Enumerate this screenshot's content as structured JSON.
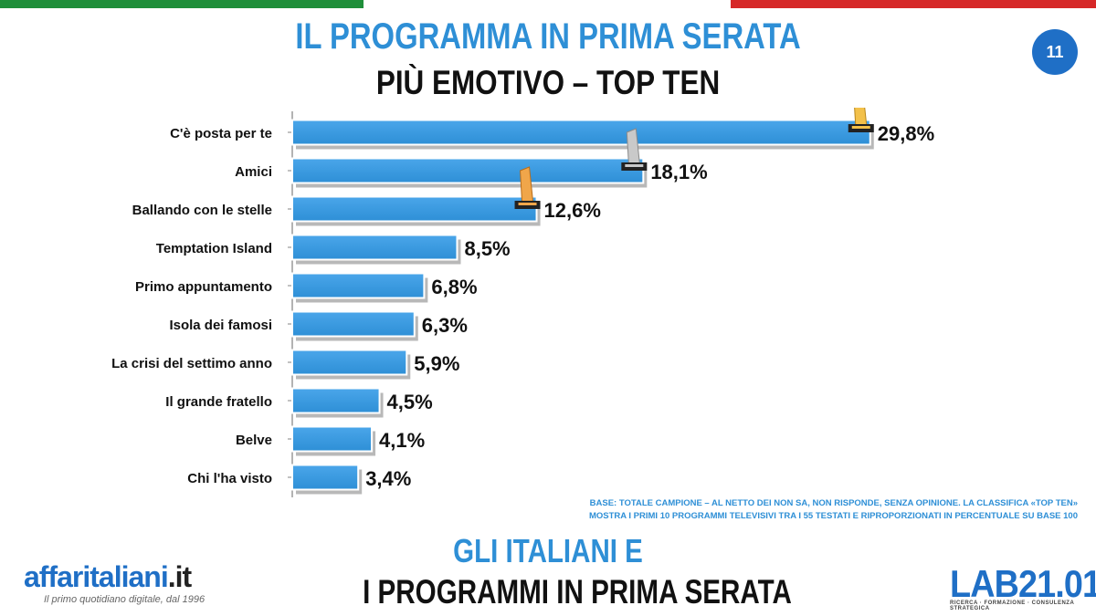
{
  "header": {
    "title": "IL PROGRAMMA IN PRIMA SERATA",
    "subtitle": "PIÙ EMOTIVO – TOP TEN",
    "page_number": "11"
  },
  "chart_data": {
    "type": "bar",
    "orientation": "horizontal",
    "categories": [
      "C'è posta per te",
      "Amici",
      "Ballando con le stelle",
      "Temptation Island",
      "Primo appuntamento",
      "Isola dei famosi",
      "La crisi del settimo anno",
      "Il grande fratello",
      "Belve",
      "Chi l'ha visto"
    ],
    "values": [
      29.8,
      18.1,
      12.6,
      8.5,
      6.8,
      6.3,
      5.9,
      4.5,
      4.1,
      3.4
    ],
    "value_labels": [
      "29,8%",
      "18,1%",
      "12,6%",
      "8,5%",
      "6,8%",
      "6,3%",
      "5,9%",
      "4,5%",
      "4,1%",
      "3,4%"
    ],
    "awards": [
      "gold",
      "silver",
      "bronze"
    ],
    "xlim": [
      0,
      30
    ],
    "bar_color": "#2e8fd6",
    "grid": false
  },
  "note": {
    "line1": "BASE: TOTALE CAMPIONE – AL NETTO DEI NON SA, NON RISPONDE, SENZA OPINIONE. LA CLASSIFICA «TOP TEN»",
    "line2": "MOSTRA I PRIMI 10 PROGRAMMI TELEVISIVI TRA I 55 TESTATI E RIPROPORZIONATI IN PERCENTUALE SU BASE 100"
  },
  "footer": {
    "line1": "GLI ITALIANI E",
    "line2": "I PROGRAMMI IN PRIMA SERATA",
    "brand_left": "affaritaliani",
    "brand_left_suffix": ".it",
    "brand_left_tagline": "Il primo quotidiano digitale, dal 1996",
    "brand_right": "LAB21.01",
    "brand_right_tagline": "RICERCA · FORMAZIONE · CONSULENZA STRATEGICA"
  },
  "colors": {
    "accent_blue": "#2e8fd6",
    "flag_green": "#1f8f3a",
    "flag_red": "#d62828"
  }
}
